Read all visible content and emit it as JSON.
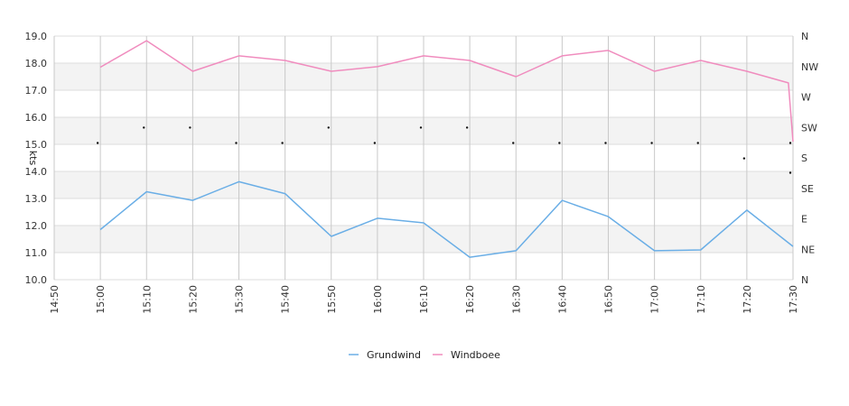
{
  "chart_data": {
    "type": "line",
    "ylabel": "kts",
    "ylim": [
      10.0,
      19.0
    ],
    "y_ticks": [
      "10.0",
      "11.0",
      "12.0",
      "13.0",
      "14.0",
      "15.0",
      "16.0",
      "17.0",
      "18.0",
      "19.0"
    ],
    "x_ticks": [
      "14:50",
      "15:00",
      "15:10",
      "15:20",
      "15:30",
      "15:40",
      "15:50",
      "16:00",
      "16:10",
      "16:20",
      "16:30",
      "16:40",
      "16:50",
      "17:00",
      "17:10",
      "17:20",
      "17:30"
    ],
    "x_minutes_range": [
      0,
      160
    ],
    "direction_ticks": [
      "N",
      "NE",
      "E",
      "SE",
      "S",
      "SW",
      "W",
      "NW",
      "N"
    ],
    "grid": true,
    "alternating_bands": true,
    "legend_position": "bottom-center",
    "series": [
      {
        "name": "Grundwind",
        "color": "#6aaee6",
        "x": [
          "15:00",
          "15:10",
          "15:20",
          "15:30",
          "15:40",
          "15:50",
          "16:00",
          "16:10",
          "16:20",
          "16:30",
          "16:40",
          "16:50",
          "17:00",
          "17:10",
          "17:20",
          "17:30"
        ],
        "values": [
          11.85,
          13.25,
          12.93,
          13.62,
          13.18,
          11.6,
          12.27,
          12.1,
          10.83,
          11.07,
          12.93,
          12.33,
          11.07,
          11.1,
          12.57,
          11.23
        ]
      },
      {
        "name": "Windboee",
        "color": "#f08cbe",
        "x": [
          "15:00",
          "15:10",
          "15:20",
          "15:30",
          "15:40",
          "15:50",
          "16:00",
          "16:10",
          "16:20",
          "16:30",
          "16:40",
          "16:50",
          "17:00",
          "17:10",
          "17:20",
          "17:29",
          "17:30"
        ],
        "values": [
          17.85,
          18.83,
          17.7,
          18.27,
          18.1,
          17.7,
          17.87,
          18.27,
          18.1,
          17.5,
          18.27,
          18.47,
          17.7,
          18.1,
          17.7,
          17.27,
          15.1
        ]
      }
    ],
    "direction_dots": {
      "color": "#111111",
      "x": [
        "15:00",
        "15:10",
        "15:20",
        "15:30",
        "15:40",
        "15:50",
        "16:00",
        "16:10",
        "16:20",
        "16:30",
        "16:40",
        "16:50",
        "17:00",
        "17:10",
        "17:20",
        "17:30",
        "17:30"
      ],
      "direction": [
        "S",
        "SW",
        "SW",
        "S",
        "S",
        "SW",
        "S",
        "SW",
        "SW",
        "S",
        "S",
        "S",
        "S",
        "S",
        "S",
        "S",
        "SE"
      ],
      "y_values": [
        15.05,
        15.62,
        15.62,
        15.05,
        15.05,
        15.62,
        15.05,
        15.62,
        15.62,
        15.05,
        15.05,
        15.05,
        15.05,
        15.05,
        14.48,
        15.05,
        13.95
      ]
    }
  }
}
